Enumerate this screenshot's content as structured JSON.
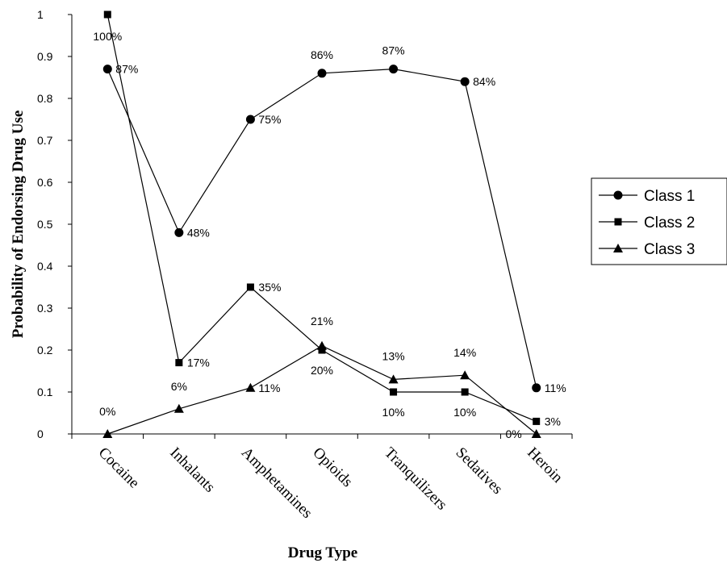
{
  "chart_data": {
    "type": "line",
    "xlabel": "Drug Type",
    "ylabel": "Probability of Endorsing Drug Use",
    "ylim": [
      0,
      1
    ],
    "yticks": [
      0,
      0.1,
      0.2,
      0.3,
      0.4,
      0.5,
      0.6,
      0.7,
      0.8,
      0.9,
      1
    ],
    "ytick_labels": [
      "0",
      "0.1",
      "0.2",
      "0.3",
      "0.4",
      "0.5",
      "0.6",
      "0.7",
      "0.8",
      "0.9",
      "1"
    ],
    "categories": [
      "Cocaine",
      "Inhalants",
      "Amphetamines",
      "Opioids",
      "Tranquilizers",
      "Sedatives",
      "Heroin"
    ],
    "grid": false,
    "legend_position": "right",
    "series": [
      {
        "name": "Class 1",
        "marker": "circle",
        "values": [
          0.87,
          0.48,
          0.75,
          0.86,
          0.87,
          0.84,
          0.11
        ],
        "labels": [
          "87%",
          "48%",
          "75%",
          "86%",
          "87%",
          "84%",
          "11%"
        ]
      },
      {
        "name": "Class 2",
        "marker": "square",
        "values": [
          1.0,
          0.17,
          0.35,
          0.2,
          0.1,
          0.1,
          0.03
        ],
        "labels": [
          "100%",
          "17%",
          "35%",
          "20%",
          "10%",
          "10%",
          "3%"
        ]
      },
      {
        "name": "Class 3",
        "marker": "triangle",
        "values": [
          0.0,
          0.06,
          0.11,
          0.21,
          0.13,
          0.14,
          0.0
        ],
        "labels": [
          "0%",
          "6%",
          "11%",
          "21%",
          "13%",
          "14%",
          "0%"
        ]
      }
    ],
    "colors": {
      "line": "#000000",
      "background": "#ffffff"
    }
  }
}
